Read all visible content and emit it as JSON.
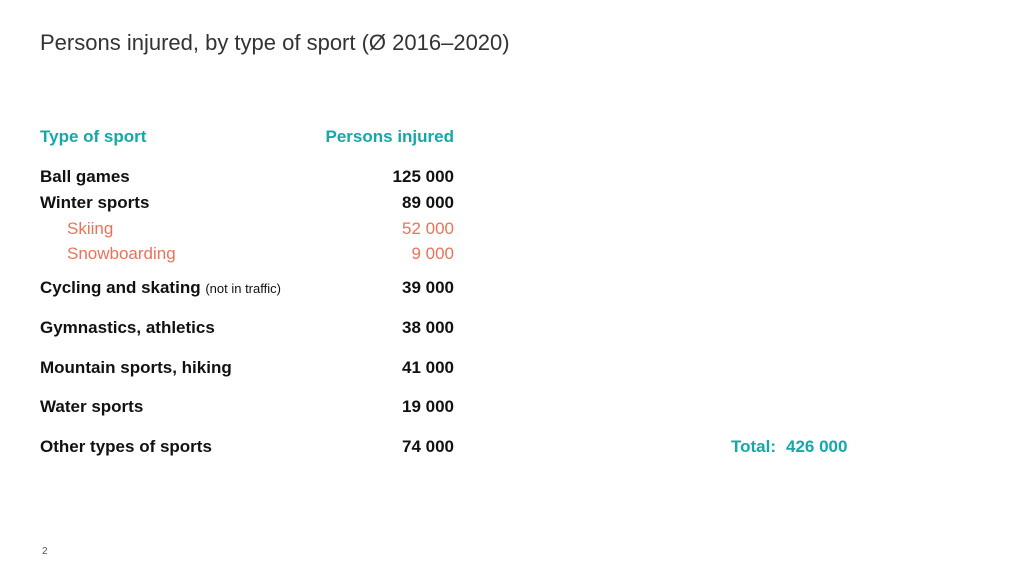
{
  "title": "Persons injured, by type of sport (Ø 2016–2020)",
  "table": {
    "header": {
      "label": "Type of sport",
      "value": "Persons injured"
    },
    "rows": [
      {
        "label": "Ball games",
        "value": "125 000"
      },
      {
        "label": "Winter sports",
        "value": "89 000"
      },
      {
        "label": "Skiing",
        "value": "52 000"
      },
      {
        "label": "Snowboarding",
        "value": "9 000"
      },
      {
        "label": "Cycling and skating",
        "note": "(not in traffic)",
        "value": "39 000"
      },
      {
        "label": "Gymnastics, athletics",
        "value": "38 000"
      },
      {
        "label": "Mountain sports, hiking",
        "value": "41 000"
      },
      {
        "label": "Water sports",
        "value": "19 000"
      },
      {
        "label": "Other types of sports",
        "value": "74 000"
      }
    ]
  },
  "total": {
    "label": "Total:",
    "value": "426 000"
  },
  "page_number": "2",
  "colors": {
    "accent": "#14a8a8",
    "subcategory": "#e8735a",
    "text": "#111111"
  }
}
